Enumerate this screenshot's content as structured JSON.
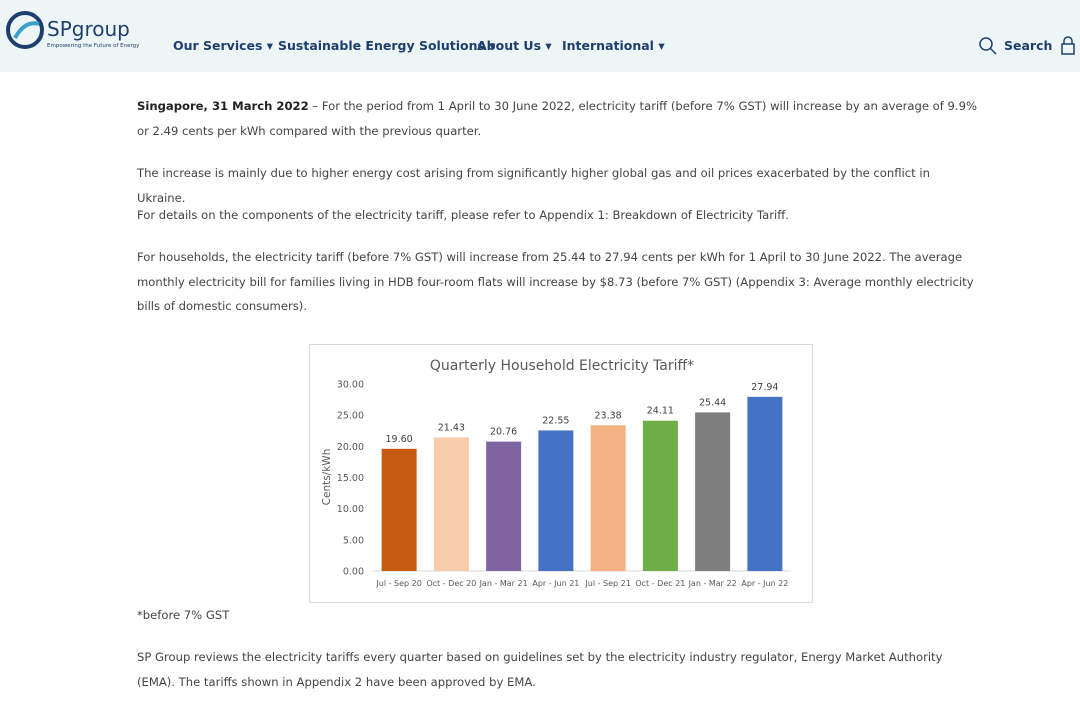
{
  "header": {
    "logo": "SPgroup",
    "tagline": "Empowering the Future of Energy",
    "nav": [
      "Our Services",
      "Sustainable Energy Solutions",
      "About Us",
      "International"
    ],
    "search": "Search"
  },
  "paragraphs": [
    {
      "lead": "Singapore, 31 March 2022",
      "text": "– For the period from 1 April to 30 June 2022, electricity tariff (before 7% GST) will increase by an average of 9.9% or 2.49 cents per kWh compared with the previous quarter."
    },
    {
      "text": "The increase is mainly due to higher energy cost arising from significantly higher global gas and oil prices exacerbated by the conflict in Ukraine."
    },
    {
      "text": "For details on the components of the electricity tariff, please refer to Appendix 1: Breakdown of Electricity Tariff."
    },
    {
      "text": "For households, the electricity tariff (before 7% GST) will increase from 25.44 to 27.94 cents per kWh for 1 April to 30 June 2022. The average monthly electricity bill for families living in HDB four-room flats will increase by $8.73 (before 7% GST) (Appendix 3: Average monthly electricity bills of domestic consumers)."
    }
  ],
  "chart_data": {
    "type": "bar",
    "title": "Quarterly Household Electricity Tariff*",
    "y_label": "Cents/kWh",
    "categories": [
      "Jul - Sep 20",
      "Oct - Dec 20",
      "Jan - Mar 21",
      "Apr - Jun 21",
      "Jul - Sep 21",
      "Oct - Dec 21",
      "Jan - Mar 22",
      "Apr - Jun 22"
    ],
    "values": [
      19.6,
      21.43,
      20.76,
      22.55,
      23.38,
      24.11,
      25.44,
      27.94
    ],
    "value_labels": [
      "19.60",
      "21.43",
      "20.76",
      "22.55",
      "23.38",
      "24.11",
      "25.44",
      "27.94"
    ],
    "colors": [
      "#c55a11",
      "#f8cbad",
      "#8064a2",
      "#4472c4",
      "#f4b183",
      "#70ad47",
      "#7f7f7f",
      "#4472c4"
    ],
    "ylim": [
      0,
      30
    ],
    "yticks": [
      {
        "value": 0,
        "label": "0.00"
      },
      {
        "value": 5,
        "label": "5.00"
      },
      {
        "value": 10,
        "label": "10.00"
      },
      {
        "value": 15,
        "label": "15.00"
      },
      {
        "value": 20,
        "label": "20.00"
      },
      {
        "value": 25,
        "label": "25.00"
      },
      {
        "value": 30,
        "label": "30.00"
      }
    ],
    "grid": false
  },
  "note": "*before 7% GST",
  "closing": "SP Group reviews the electricity tariffs every quarter based on guidelines set by the electricity industry regulator, Energy Market Authority (EMA). The tariffs shown in Appendix 2 have been approved by EMA."
}
